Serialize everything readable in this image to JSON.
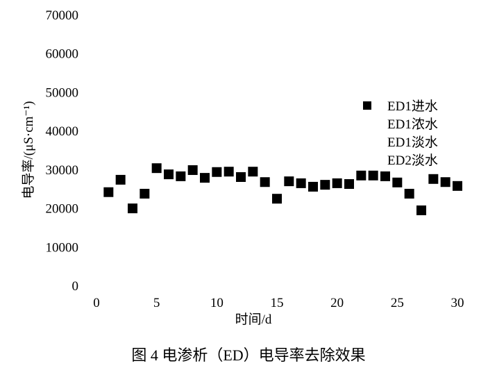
{
  "chart_data": {
    "type": "scatter",
    "xlabel": "时间/d",
    "ylabel": "电导率/(μS·cm⁻¹)",
    "xlim": [
      0,
      30
    ],
    "ylim": [
      0,
      70000
    ],
    "xticks": [
      0,
      5,
      10,
      15,
      20,
      25,
      30
    ],
    "yticks": [
      0,
      10000,
      20000,
      30000,
      40000,
      50000,
      60000,
      70000
    ],
    "grid": false,
    "legend_position": "right",
    "marker_color": "#000000",
    "series": [
      {
        "name": "ED1进水",
        "marker": "square",
        "x": [
          1,
          2,
          3,
          4,
          5,
          6,
          7,
          8,
          9,
          10,
          11,
          12,
          13,
          14,
          15,
          16,
          17,
          18,
          19,
          20,
          21,
          22,
          23,
          24,
          25,
          26,
          27,
          28,
          29,
          30
        ],
        "y": [
          24100,
          27300,
          19900,
          23700,
          30300,
          28700,
          28200,
          29800,
          27800,
          29300,
          29400,
          28000,
          29400,
          26700,
          22400,
          26900,
          26400,
          25500,
          26000,
          26400,
          26200,
          28400,
          28400,
          28200,
          26600,
          23700,
          19400,
          27500,
          26700,
          25700
        ]
      },
      {
        "name": "ED1浓水",
        "x": [],
        "y": []
      },
      {
        "name": "ED1淡水",
        "x": [],
        "y": []
      },
      {
        "name": "ED2淡水",
        "x": [],
        "y": []
      }
    ]
  },
  "caption": "图 4  电渗析（ED）电导率去除效果"
}
